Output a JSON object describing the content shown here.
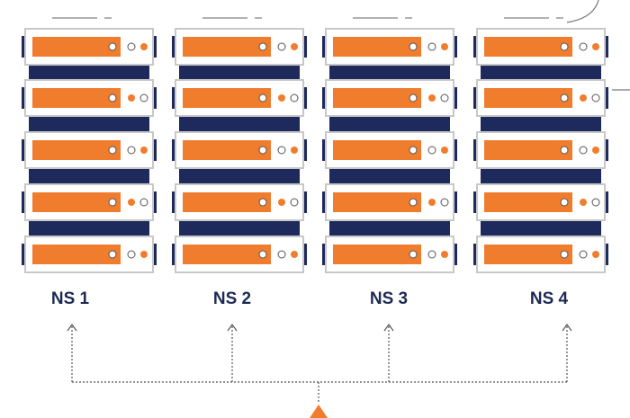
{
  "nodes": [
    {
      "label": "NS 1"
    },
    {
      "label": "NS 2"
    },
    {
      "label": "NS 3"
    },
    {
      "label": "NS 4"
    }
  ]
}
